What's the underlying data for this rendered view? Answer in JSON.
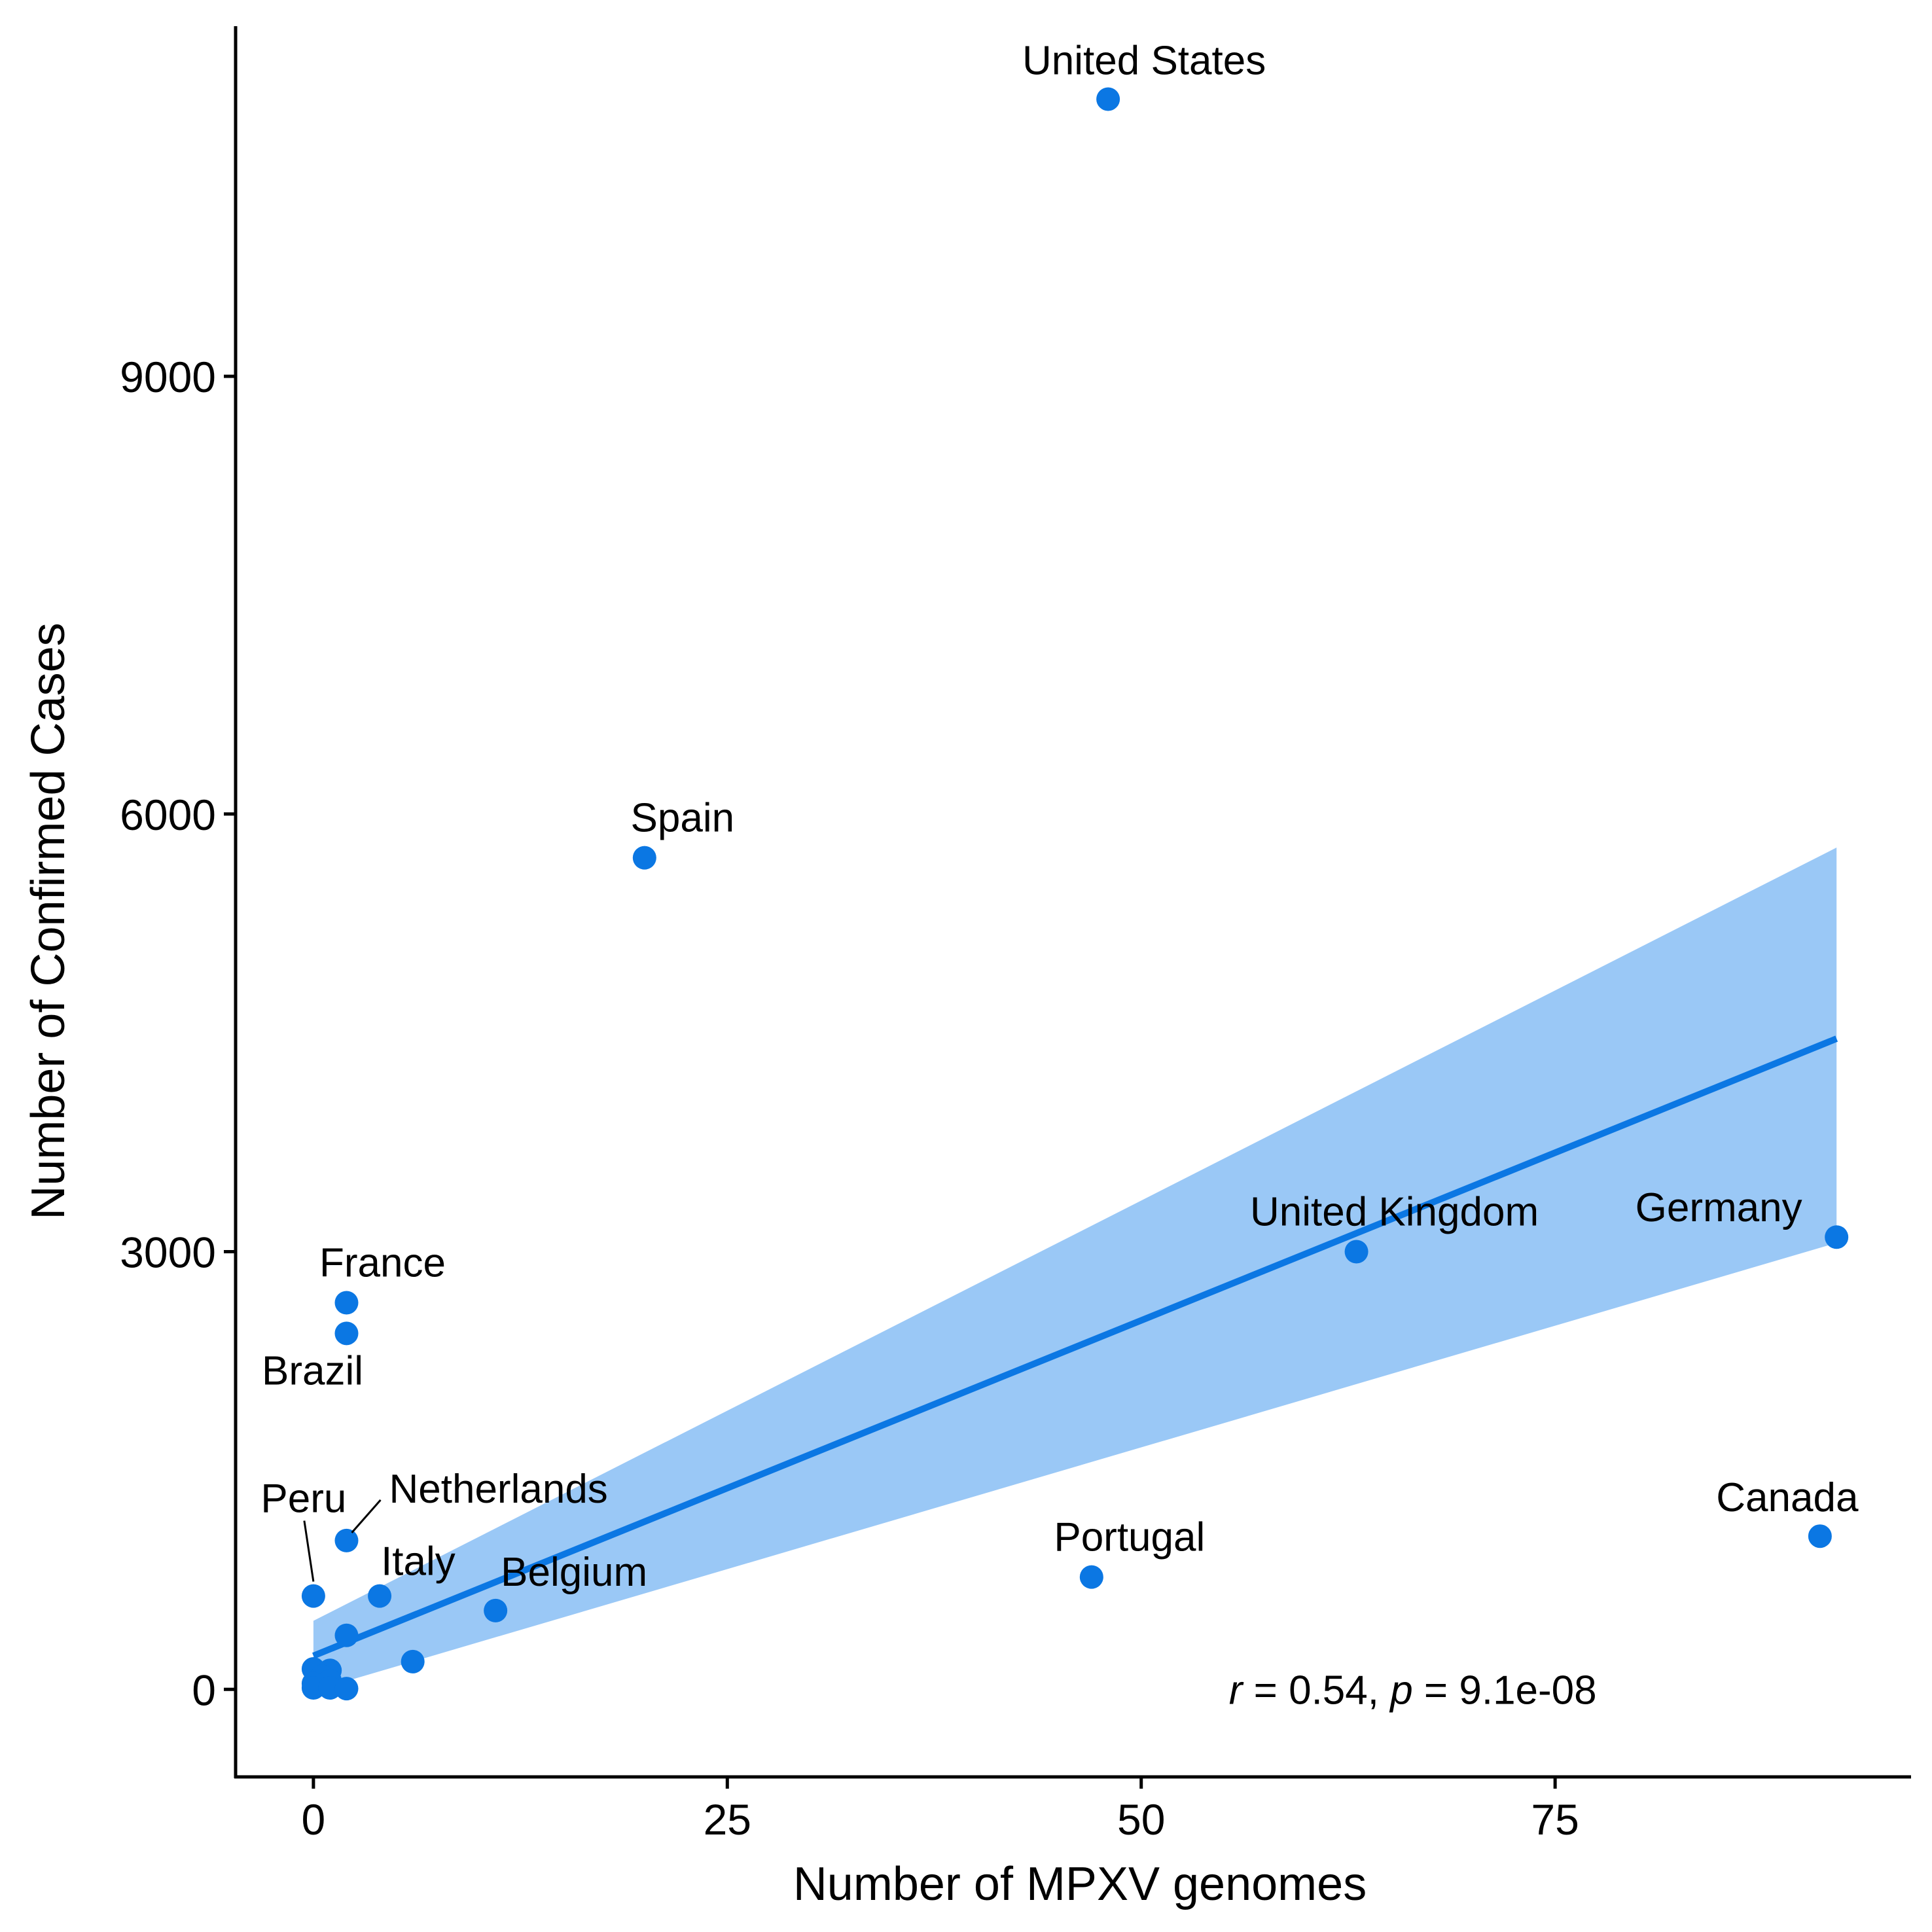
{
  "chart_data": {
    "type": "scatter",
    "xlabel": "Number of MPXV genomes",
    "ylabel": "Number of Confirmed Cases",
    "xlim": [
      -4.7,
      96.5
    ],
    "ylim": [
      -600,
      11400
    ],
    "x_ticks": [
      0,
      25,
      50,
      75
    ],
    "y_ticks": [
      0,
      3000,
      6000,
      9000
    ],
    "grid": false,
    "colors": {
      "point": "#0b77e3",
      "fit_line": "#0b77e3",
      "confidence_band": "#9ac8f6"
    },
    "points": [
      {
        "label": "United States",
        "x": 48,
        "y": 10900
      },
      {
        "label": "Spain",
        "x": 20,
        "y": 5700
      },
      {
        "label": "United Kingdom",
        "x": 63,
        "y": 3000
      },
      {
        "label": "Germany",
        "x": 92,
        "y": 3100
      },
      {
        "label": "France",
        "x": 2,
        "y": 2650
      },
      {
        "label": "Brazil",
        "x": 2,
        "y": 2440
      },
      {
        "label": "Canada",
        "x": 91,
        "y": 1050
      },
      {
        "label": "Netherlands",
        "x": 2,
        "y": 1020
      },
      {
        "label": "Portugal",
        "x": 47,
        "y": 770
      },
      {
        "label": "Peru",
        "x": 0,
        "y": 640
      },
      {
        "label": "Italy",
        "x": 4,
        "y": 640
      },
      {
        "label": "Belgium",
        "x": 11,
        "y": 540
      },
      {
        "label": "",
        "x": 2,
        "y": 370
      },
      {
        "label": "",
        "x": 6,
        "y": 190
      },
      {
        "label": "",
        "x": 0,
        "y": 140
      },
      {
        "label": "",
        "x": 1,
        "y": 130
      },
      {
        "label": "",
        "x": 0.5,
        "y": 90
      },
      {
        "label": "",
        "x": 1,
        "y": 60
      },
      {
        "label": "",
        "x": 0,
        "y": 40
      },
      {
        "label": "",
        "x": 0,
        "y": 10
      },
      {
        "label": "",
        "x": 1,
        "y": 10
      },
      {
        "label": "",
        "x": 2,
        "y": 5
      }
    ],
    "fit_line": {
      "x": [
        0,
        92
      ],
      "y": [
        230,
        4460
      ]
    },
    "confidence_band": {
      "x": [
        0,
        92
      ],
      "upper": [
        470,
        5770
      ],
      "lower": [
        -10,
        3060
      ]
    },
    "annotation": {
      "r_symbol": "r",
      "r_text": " = 0.54, ",
      "p_symbol": "p",
      "p_text": " = 9.1e-08",
      "x": 55.3,
      "y": 0
    }
  }
}
